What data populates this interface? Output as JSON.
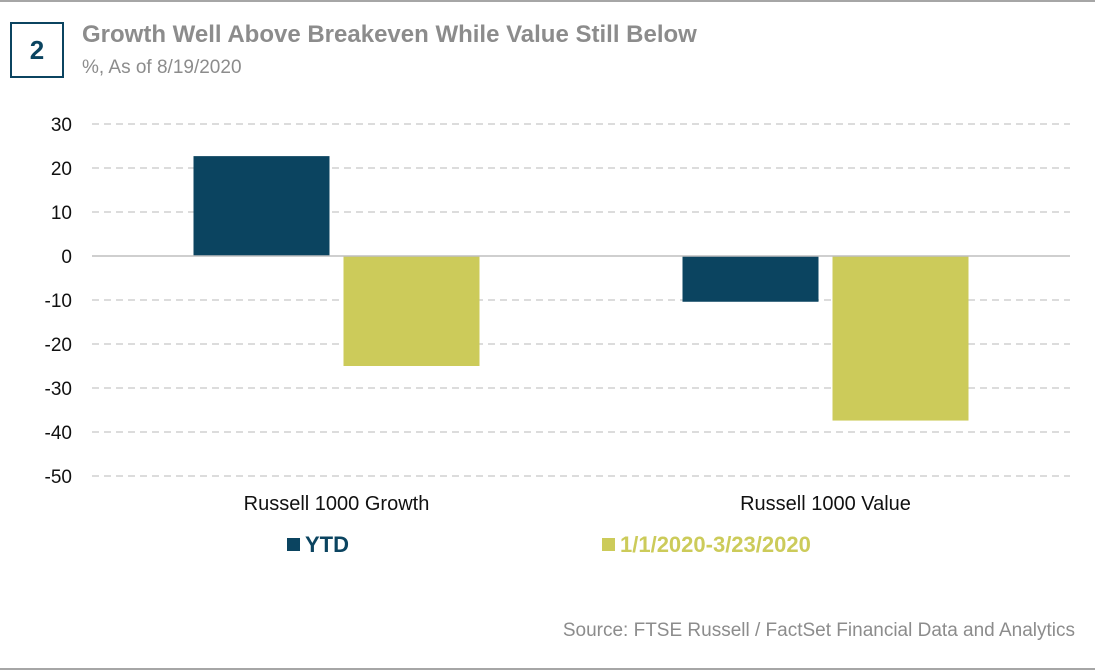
{
  "figure_number": "2",
  "title": "Growth Well Above Breakeven While Value Still Below",
  "subtitle": "%, As of 8/19/2020",
  "source": "Source: FTSE Russell / FactSet Financial Data and Analytics",
  "colors": {
    "ytd": "#0b4460",
    "period": "#cccb5a",
    "grid": "#d0d0d0",
    "text_gray": "#8c8c8c"
  },
  "chart_data": {
    "type": "bar",
    "categories": [
      "Russell 1000 Growth",
      "Russell 1000 Value"
    ],
    "series": [
      {
        "name": "YTD",
        "values": [
          22.7,
          -10.4
        ]
      },
      {
        "name": "1/1/2020-3/23/2020",
        "values": [
          -25.0,
          -37.4
        ]
      }
    ],
    "ylim": [
      -50,
      30
    ],
    "yticks": [
      30,
      20,
      10,
      0,
      -10,
      -20,
      -30,
      -40,
      -50
    ],
    "grid": true,
    "legend_position": "bottom"
  }
}
